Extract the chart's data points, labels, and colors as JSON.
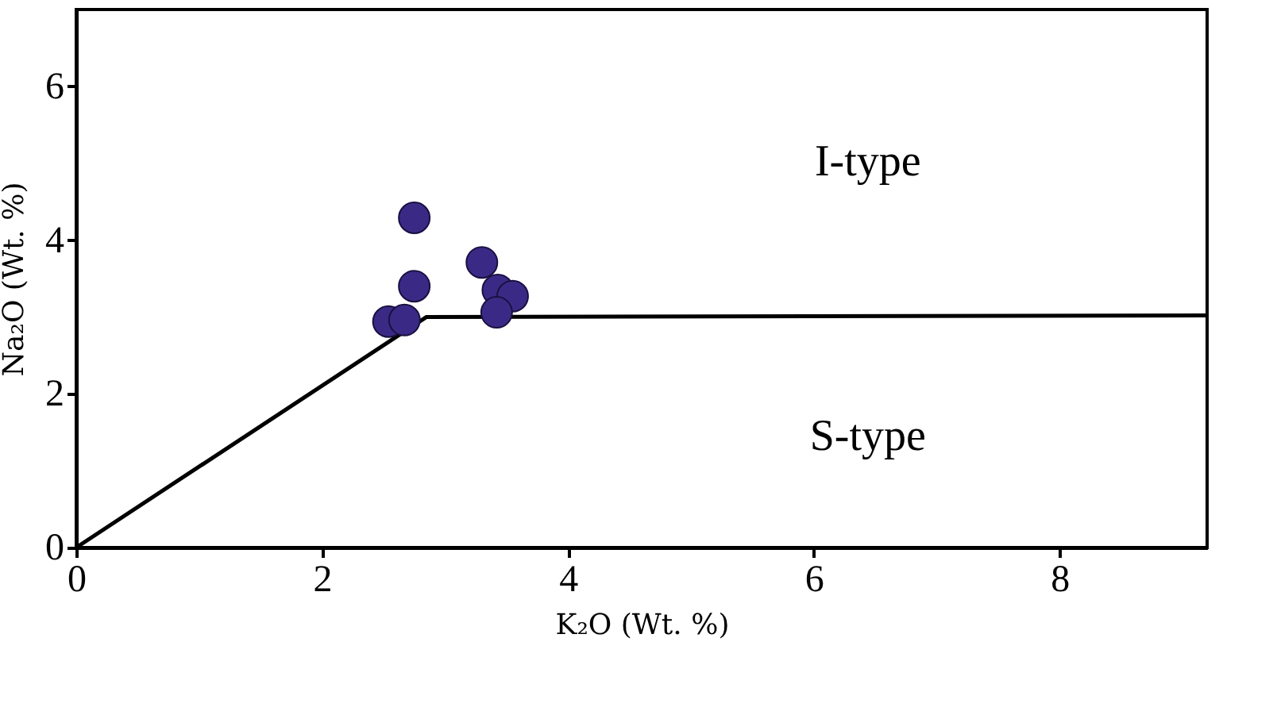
{
  "chart_data": {
    "type": "scatter",
    "xlabel": "K₂O (Wt. %)",
    "ylabel": "Na₂O (Wt. %)",
    "xlim": [
      0,
      9.2
    ],
    "ylim": [
      0,
      7
    ],
    "xticks": [
      0,
      2,
      4,
      6,
      8
    ],
    "yticks": [
      0,
      2,
      4,
      6
    ],
    "grid": false,
    "series": [
      {
        "type": "line",
        "color": "#000000",
        "x": [
          0,
          2.85,
          9.2
        ],
        "values": [
          0,
          3,
          3.02
        ]
      },
      {
        "marker": "circle",
        "color": "#3b2a85",
        "x": [
          2.75,
          2.75,
          2.54,
          2.67,
          3.3,
          3.43,
          3.55,
          3.42
        ],
        "values": [
          4.29,
          3.4,
          2.94,
          2.96,
          3.71,
          3.35,
          3.27,
          3.06
        ]
      }
    ],
    "annotations": [
      "I-type",
      "S-type"
    ]
  }
}
